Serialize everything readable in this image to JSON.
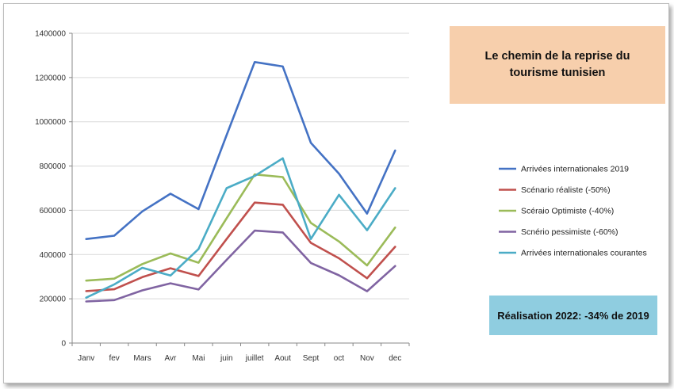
{
  "chart_data": {
    "type": "line",
    "title": "Le chemin de la reprise du tourisme tunisien",
    "annotation": "Réalisation 2022: -34% de 2019",
    "categories": [
      "Janv",
      "fev",
      "Mars",
      "Avr",
      "Mai",
      "juin",
      "juillet",
      "Aout",
      "Sept",
      "oct",
      "Nov",
      "dec"
    ],
    "ylim": [
      0,
      1400000
    ],
    "yticks": [
      "0",
      "200000",
      "400000",
      "600000",
      "800000",
      "1000000",
      "1200000",
      "1400000"
    ],
    "grid": true,
    "legend_position": "right",
    "series": [
      {
        "name": "Arrivées internationales 2019",
        "color": "#4472c4",
        "values": [
          470000,
          485000,
          595000,
          675000,
          605000,
          940000,
          1270000,
          1250000,
          905000,
          765000,
          585000,
          870000
        ]
      },
      {
        "name": "Scénario réaliste (-50%)",
        "color": "#c0504d",
        "values": [
          235000,
          243000,
          298000,
          338000,
          303000,
          470000,
          635000,
          625000,
          453000,
          383000,
          293000,
          435000
        ]
      },
      {
        "name": "Scéraio Optimiste (-40%)",
        "color": "#9bbb59",
        "values": [
          282000,
          291000,
          357000,
          405000,
          363000,
          564000,
          762000,
          750000,
          543000,
          459000,
          351000,
          522000
        ]
      },
      {
        "name": "Scnério pessimiste (-60%)",
        "color": "#8064a2",
        "values": [
          188000,
          194000,
          238000,
          270000,
          242000,
          376000,
          508000,
          500000,
          362000,
          306000,
          234000,
          348000
        ]
      },
      {
        "name": "Arrivées internationales courantes",
        "color": "#4bacc6",
        "values": [
          205000,
          265000,
          340000,
          305000,
          425000,
          700000,
          755000,
          835000,
          470000,
          670000,
          510000,
          700000
        ]
      }
    ]
  }
}
